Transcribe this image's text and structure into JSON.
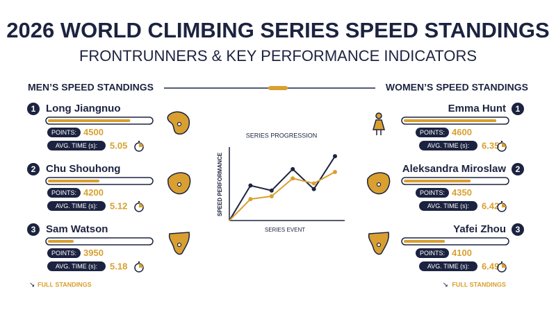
{
  "header": {
    "title": "2026 WORLD CLIMBING SERIES SPEED STANDINGS",
    "subtitle": "FRONTRUNNERS & KEY PERFORMANCE INDICATORS"
  },
  "men": {
    "heading": "MEN’S SPEED STANDINGS",
    "points_label": "POINTS:",
    "time_label": "AVG. TIME (s):",
    "link": "FULL STANDINGS",
    "points_scale": [
      3700,
      4700
    ],
    "athletes": [
      {
        "rank": 1,
        "name": "Long Jiangnuo",
        "points": 4500,
        "time": 5.05
      },
      {
        "rank": 2,
        "name": "Chu Shouhong",
        "points": 4200,
        "time": 5.12
      },
      {
        "rank": 3,
        "name": "Sam Watson",
        "points": 3950,
        "time": 5.18
      }
    ]
  },
  "women": {
    "heading": "WOMEN’S SPEED STANDINGS",
    "points_label": "POINTS:",
    "time_label": "AVG. TIME (s):",
    "link": "FULL STANDINGS",
    "points_scale": [
      3700,
      4700
    ],
    "athletes": [
      {
        "rank": 1,
        "name": "Emma Hunt",
        "points": 4600,
        "time": 6.35
      },
      {
        "rank": 2,
        "name": "Aleksandra Miroslaw",
        "points": 4350,
        "time": 6.42
      },
      {
        "rank": 3,
        "name": "Yafei Zhou",
        "points": 4100,
        "time": 6.49
      }
    ]
  },
  "chart_data": {
    "type": "line",
    "title": "SERIES PROGRESSION",
    "x_label": "SERIES EVENT",
    "y_label": "SPEED PERFORMANCE",
    "categories": [
      null,
      null,
      null,
      null,
      null,
      null
    ],
    "ylim": [
      0,
      100
    ],
    "series": [
      {
        "color": "#1c2340",
        "values": [
          0,
          49,
          42,
          72,
          44,
          90
        ]
      },
      {
        "color": "#d9a030",
        "values": [
          0,
          30,
          34,
          59,
          52,
          68
        ]
      }
    ]
  }
}
